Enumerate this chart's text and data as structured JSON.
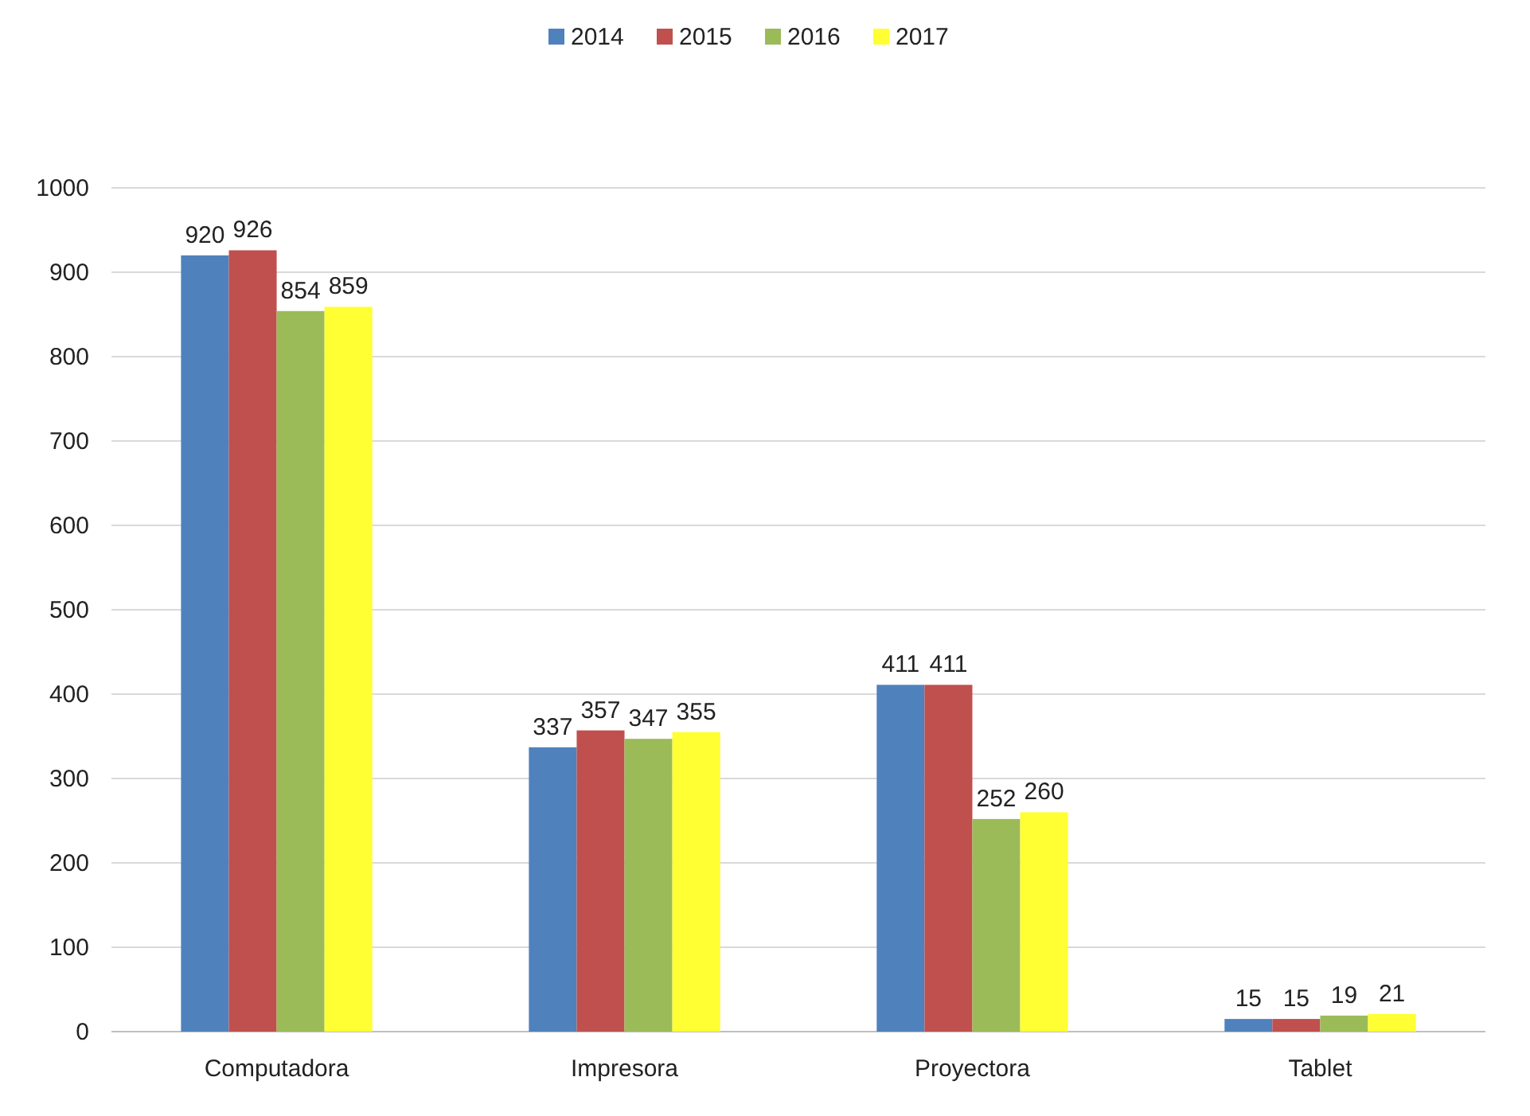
{
  "chart_data": {
    "type": "bar",
    "categories": [
      "Computadora",
      "Impresora",
      "Proyectora",
      "Tablet"
    ],
    "series": [
      {
        "name": "2014",
        "color": "#4f81bd",
        "values": [
          920,
          337,
          411,
          15
        ]
      },
      {
        "name": "2015",
        "color": "#c0504d",
        "values": [
          926,
          357,
          411,
          15
        ]
      },
      {
        "name": "2016",
        "color": "#9bbb59",
        "values": [
          854,
          347,
          252,
          19
        ]
      },
      {
        "name": "2017",
        "color": "#ffff33",
        "values": [
          859,
          355,
          260,
          21
        ]
      }
    ],
    "ylim": [
      0,
      1000
    ],
    "yticks": [
      0,
      100,
      200,
      300,
      400,
      500,
      600,
      700,
      800,
      900,
      1000
    ],
    "grid": true,
    "legend": "top",
    "data_labels": true
  }
}
